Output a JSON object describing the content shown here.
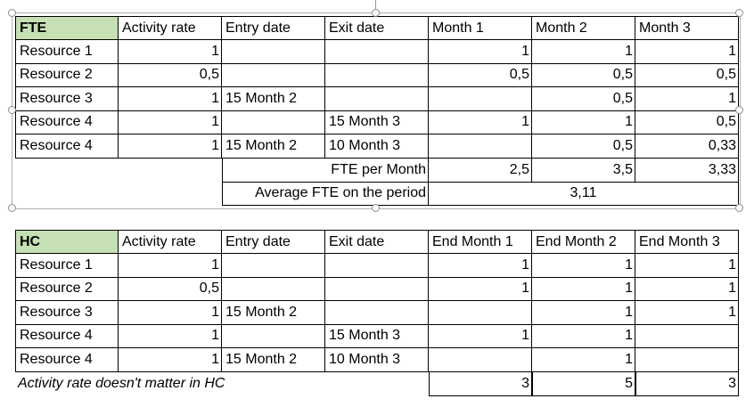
{
  "fte": {
    "headers": [
      "FTE",
      "Activity rate",
      "Entry date",
      "Exit date",
      "Month 1",
      "Month 2",
      "Month 3"
    ],
    "rows": [
      [
        "Resource 1",
        "1",
        "",
        "",
        "1",
        "1",
        "1"
      ],
      [
        "Resource 2",
        "0,5",
        "",
        "",
        "0,5",
        "0,5",
        "0,5"
      ],
      [
        "Resource 3",
        "1",
        "15 Month 2",
        "",
        "",
        "0,5",
        "1"
      ],
      [
        "Resource 4",
        "1",
        "",
        "15 Month 3",
        "1",
        "1",
        "0,5"
      ],
      [
        "Resource 4",
        "1",
        "15 Month 2",
        "10 Month 3",
        "",
        "0,5",
        "0,33"
      ]
    ],
    "per_month_label": "FTE per Month",
    "per_month_values": [
      "2,5",
      "3,5",
      "3,33"
    ],
    "average_label": "Average FTE on the period",
    "average_value": "3,11"
  },
  "hc": {
    "headers": [
      "HC",
      "Activity rate",
      "Entry date",
      "Exit date",
      "End Month 1",
      "End Month 2",
      "End Month 3"
    ],
    "rows": [
      [
        "Resource 1",
        "1",
        "",
        "",
        "1",
        "1",
        "1"
      ],
      [
        "Resource 2",
        "0,5",
        "",
        "",
        "1",
        "1",
        "1"
      ],
      [
        "Resource 3",
        "1",
        "15 Month 2",
        "",
        "",
        "1",
        "1"
      ],
      [
        "Resource 4",
        "1",
        "",
        "15 Month 3",
        "1",
        "1",
        ""
      ],
      [
        "Resource 4",
        "1",
        "15 Month 2",
        "10 Month 3",
        "",
        "1",
        ""
      ]
    ],
    "note": "Activity rate doesn't matter in HC",
    "totals": [
      "3",
      "5",
      "3"
    ]
  },
  "colors": {
    "header_fill": "#c6e0b4",
    "grid": "#000000",
    "handle_border": "#8c8c8c"
  }
}
